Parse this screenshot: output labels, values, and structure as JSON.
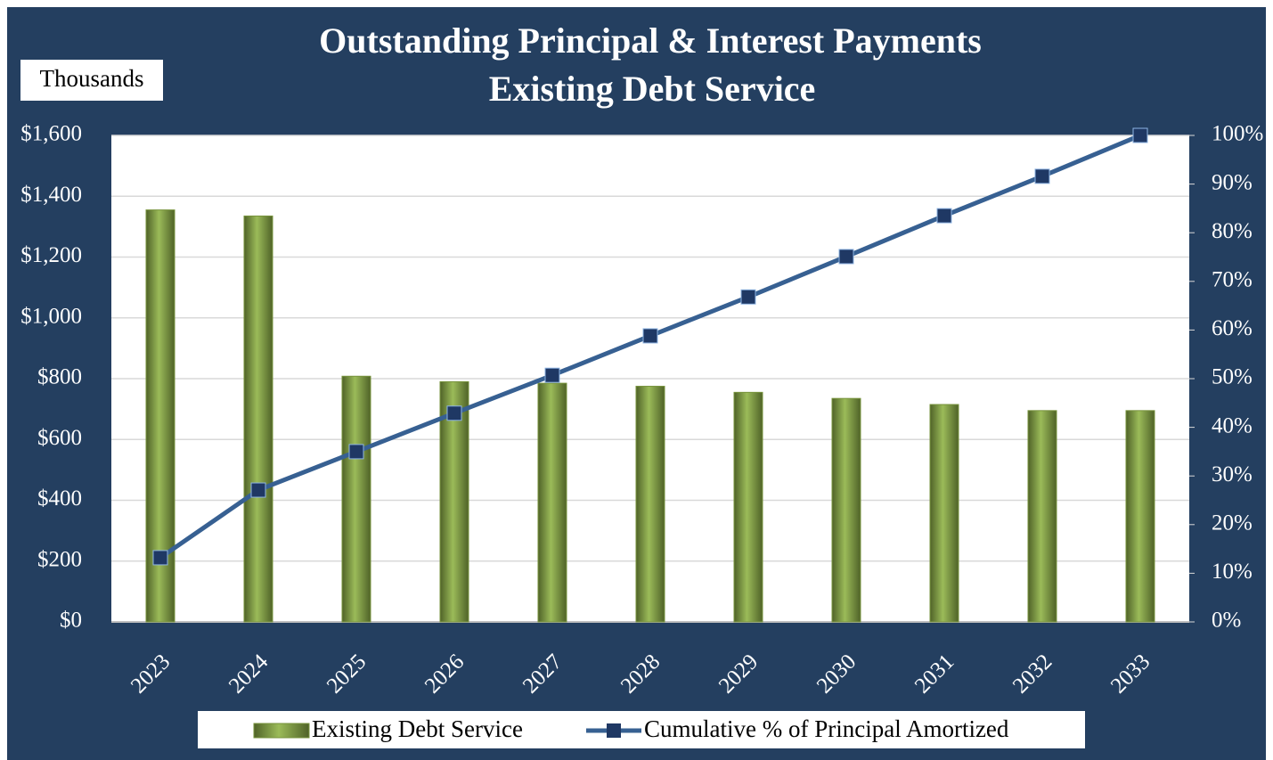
{
  "chart_data": {
    "type": "bar",
    "title": "Outstanding Principal & Interest Payments",
    "subtitle": "Existing Debt Service",
    "annotation": "Thousands",
    "categories": [
      "2023",
      "2024",
      "2025",
      "2026",
      "2027",
      "2028",
      "2029",
      "2030",
      "2031",
      "2032",
      "2033"
    ],
    "series": [
      {
        "name": "Existing Debt Service",
        "color": "#77933c",
        "values": [
          1355,
          1335,
          808,
          790,
          785,
          775,
          755,
          735,
          715,
          695,
          695
        ]
      },
      {
        "name": "Cumulative % of Principal Amortized",
        "color": "#376092",
        "type": "line",
        "axis": "y2",
        "values": [
          13.2,
          27.1,
          35,
          42.9,
          50.7,
          58.8,
          66.8,
          75.1,
          83.5,
          91.6,
          100
        ]
      }
    ],
    "ylim": [
      0,
      1600
    ],
    "yticks": [
      {
        "value": 0,
        "label": "$0"
      },
      {
        "value": 200,
        "label": "$200"
      },
      {
        "value": 400,
        "label": "$400"
      },
      {
        "value": 600,
        "label": "$600"
      },
      {
        "value": 800,
        "label": "$800"
      },
      {
        "value": 1000,
        "label": "$1,000"
      },
      {
        "value": 1200,
        "label": "$1,200"
      },
      {
        "value": 1400,
        "label": "$1,400"
      },
      {
        "value": 1600,
        "label": "$1,600"
      }
    ],
    "y2lim": [
      0,
      100
    ],
    "y2ticks": [
      {
        "value": 0,
        "label": "0%"
      },
      {
        "value": 10,
        "label": "10%"
      },
      {
        "value": 20,
        "label": "20%"
      },
      {
        "value": 30,
        "label": "30%"
      },
      {
        "value": 40,
        "label": "40%"
      },
      {
        "value": 50,
        "label": "50%"
      },
      {
        "value": 60,
        "label": "60%"
      },
      {
        "value": 70,
        "label": "70%"
      },
      {
        "value": 80,
        "label": "80%"
      },
      {
        "value": 90,
        "label": "90%"
      },
      {
        "value": 100,
        "label": "100%"
      }
    ],
    "grid": true,
    "legend": "bottom"
  }
}
